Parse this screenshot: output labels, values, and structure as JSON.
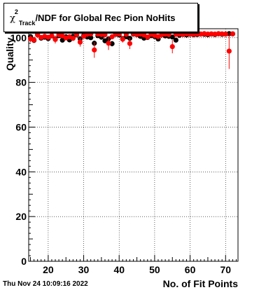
{
  "title": {
    "symbol": "χ",
    "superscript": "2",
    "subscript": "Track",
    "text": "/NDF for Global Rec Pion NoHits"
  },
  "timestamp": "Thu Nov 24 10:09:16 2022",
  "chart_data": {
    "type": "scatter",
    "title": "χ²_Track/NDF for Global Rec Pion NoHits",
    "xlabel": "No. of Fit Points",
    "ylabel": "Quality",
    "xlim": [
      14.5,
      73.5
    ],
    "ylim": [
      0,
      104
    ],
    "x_ticks": [
      20,
      30,
      40,
      50,
      60,
      70
    ],
    "y_ticks": [
      0,
      20,
      40,
      60,
      80,
      100
    ],
    "grid": true,
    "series": [
      {
        "color": "#000000",
        "points": [
          {
            "x": 15,
            "y": 100.5,
            "err": 0.8
          },
          {
            "x": 16,
            "y": 98.8,
            "err": 0.8
          },
          {
            "x": 17,
            "y": 101.5,
            "err": 0.8
          },
          {
            "x": 18,
            "y": 99.8,
            "err": 0.8
          },
          {
            "x": 19,
            "y": 100.2,
            "err": 0.8
          },
          {
            "x": 20,
            "y": 99.6,
            "err": 0.8
          },
          {
            "x": 21,
            "y": 100.8,
            "err": 0.8
          },
          {
            "x": 22,
            "y": 99.4,
            "err": 0.8
          },
          {
            "x": 23,
            "y": 100.9,
            "err": 0.8
          },
          {
            "x": 24,
            "y": 98.9,
            "err": 0.8
          },
          {
            "x": 25,
            "y": 100.4,
            "err": 0.8
          },
          {
            "x": 26,
            "y": 99.0,
            "err": 0.8
          },
          {
            "x": 27,
            "y": 100.6,
            "err": 0.8
          },
          {
            "x": 28,
            "y": 101.2,
            "err": 0.8
          },
          {
            "x": 29,
            "y": 99.5,
            "err": 0.8
          },
          {
            "x": 30,
            "y": 101.0,
            "err": 0.8
          },
          {
            "x": 31,
            "y": 100.3,
            "err": 0.8
          },
          {
            "x": 32,
            "y": 100.0,
            "err": 0.8
          },
          {
            "x": 33,
            "y": 97.5,
            "err": 1.2
          },
          {
            "x": 34,
            "y": 100.9,
            "err": 0.8
          },
          {
            "x": 35,
            "y": 100.2,
            "err": 0.8
          },
          {
            "x": 36,
            "y": 98.6,
            "err": 0.8
          },
          {
            "x": 37,
            "y": 99.5,
            "err": 0.8
          },
          {
            "x": 38,
            "y": 97.3,
            "err": 1.2
          },
          {
            "x": 39,
            "y": 101.5,
            "err": 0.8
          },
          {
            "x": 40,
            "y": 101.2,
            "err": 0.8
          },
          {
            "x": 41,
            "y": 99.6,
            "err": 0.8
          },
          {
            "x": 42,
            "y": 100.4,
            "err": 0.8
          },
          {
            "x": 43,
            "y": 99.7,
            "err": 0.8
          },
          {
            "x": 44,
            "y": 101.6,
            "err": 0.8
          },
          {
            "x": 45,
            "y": 101.3,
            "err": 0.8
          },
          {
            "x": 46,
            "y": 100.6,
            "err": 0.8
          },
          {
            "x": 47,
            "y": 99.8,
            "err": 0.8
          },
          {
            "x": 48,
            "y": 100.1,
            "err": 0.8
          },
          {
            "x": 49,
            "y": 100.9,
            "err": 0.8
          },
          {
            "x": 50,
            "y": 100.5,
            "err": 0.8
          },
          {
            "x": 51,
            "y": 99.4,
            "err": 0.8
          },
          {
            "x": 52,
            "y": 101.2,
            "err": 0.8
          },
          {
            "x": 53,
            "y": 100.8,
            "err": 0.8
          },
          {
            "x": 54,
            "y": 100.6,
            "err": 0.8
          },
          {
            "x": 55,
            "y": 100.3,
            "err": 0.8
          },
          {
            "x": 56,
            "y": 98.9,
            "err": 0.8
          },
          {
            "x": 57,
            "y": 101.1,
            "err": 0.8
          },
          {
            "x": 58,
            "y": 101.4,
            "err": 0.8
          },
          {
            "x": 59,
            "y": 101.2,
            "err": 0.8
          },
          {
            "x": 60,
            "y": 101.5,
            "err": 0.8
          },
          {
            "x": 61,
            "y": 101.3,
            "err": 0.8
          },
          {
            "x": 62,
            "y": 101.4,
            "err": 0.8
          },
          {
            "x": 63,
            "y": 101.6,
            "err": 0.8
          },
          {
            "x": 64,
            "y": 101.5,
            "err": 0.8
          },
          {
            "x": 65,
            "y": 101.3,
            "err": 0.8
          },
          {
            "x": 66,
            "y": 101.6,
            "err": 0.8
          },
          {
            "x": 67,
            "y": 101.4,
            "err": 0.8
          },
          {
            "x": 68,
            "y": 101.7,
            "err": 0.8
          },
          {
            "x": 69,
            "y": 101.5,
            "err": 0.8
          },
          {
            "x": 70,
            "y": 101.6,
            "err": 0.8
          },
          {
            "x": 71,
            "y": 101.8,
            "err": 0.8
          },
          {
            "x": 72,
            "y": 101.7,
            "err": 0.8
          }
        ]
      },
      {
        "color": "#ff0000",
        "points": [
          {
            "x": 15,
            "y": 99.5,
            "err": 1.5
          },
          {
            "x": 16,
            "y": 99.0,
            "err": 1.5
          },
          {
            "x": 17,
            "y": 101.2,
            "err": 1.2
          },
          {
            "x": 18,
            "y": 100.1,
            "err": 1.0
          },
          {
            "x": 19,
            "y": 100.6,
            "err": 1.0
          },
          {
            "x": 20,
            "y": 100.2,
            "err": 1.0
          },
          {
            "x": 21,
            "y": 100.9,
            "err": 1.0
          },
          {
            "x": 22,
            "y": 99.2,
            "err": 1.8
          },
          {
            "x": 23,
            "y": 101.3,
            "err": 1.0
          },
          {
            "x": 24,
            "y": 100.8,
            "err": 1.0
          },
          {
            "x": 25,
            "y": 99.9,
            "err": 1.0
          },
          {
            "x": 26,
            "y": 100.4,
            "err": 1.0
          },
          {
            "x": 27,
            "y": 99.7,
            "err": 1.0
          },
          {
            "x": 28,
            "y": 101.4,
            "err": 1.0
          },
          {
            "x": 29,
            "y": 98.0,
            "err": 2.0
          },
          {
            "x": 30,
            "y": 100.6,
            "err": 1.0
          },
          {
            "x": 31,
            "y": 101.5,
            "err": 1.0
          },
          {
            "x": 32,
            "y": 101.7,
            "err": 1.0
          },
          {
            "x": 33,
            "y": 94.5,
            "err": 3.5
          },
          {
            "x": 34,
            "y": 101.6,
            "err": 1.0
          },
          {
            "x": 35,
            "y": 101.4,
            "err": 1.0
          },
          {
            "x": 36,
            "y": 101.3,
            "err": 1.0
          },
          {
            "x": 37,
            "y": 97.5,
            "err": 3.0
          },
          {
            "x": 38,
            "y": 100.4,
            "err": 1.0
          },
          {
            "x": 39,
            "y": 101.7,
            "err": 1.0
          },
          {
            "x": 40,
            "y": 101.6,
            "err": 1.0
          },
          {
            "x": 41,
            "y": 99.3,
            "err": 1.5
          },
          {
            "x": 42,
            "y": 101.5,
            "err": 1.0
          },
          {
            "x": 43,
            "y": 97.4,
            "err": 2.5
          },
          {
            "x": 44,
            "y": 101.8,
            "err": 1.0
          },
          {
            "x": 45,
            "y": 101.4,
            "err": 1.0
          },
          {
            "x": 46,
            "y": 101.6,
            "err": 1.0
          },
          {
            "x": 47,
            "y": 101.2,
            "err": 1.0
          },
          {
            "x": 48,
            "y": 100.3,
            "err": 1.0
          },
          {
            "x": 49,
            "y": 101.5,
            "err": 1.0
          },
          {
            "x": 50,
            "y": 101.0,
            "err": 1.0
          },
          {
            "x": 51,
            "y": 100.5,
            "err": 1.0
          },
          {
            "x": 52,
            "y": 101.3,
            "err": 1.0
          },
          {
            "x": 53,
            "y": 101.6,
            "err": 1.0
          },
          {
            "x": 54,
            "y": 101.4,
            "err": 1.0
          },
          {
            "x": 55,
            "y": 96.0,
            "err": 3.0
          },
          {
            "x": 56,
            "y": 101.5,
            "err": 1.0
          },
          {
            "x": 57,
            "y": 101.6,
            "err": 1.0
          },
          {
            "x": 58,
            "y": 101.5,
            "err": 1.0
          },
          {
            "x": 59,
            "y": 101.7,
            "err": 1.0
          },
          {
            "x": 60,
            "y": 101.6,
            "err": 1.0
          },
          {
            "x": 61,
            "y": 101.5,
            "err": 1.0
          },
          {
            "x": 62,
            "y": 101.7,
            "err": 1.0
          },
          {
            "x": 63,
            "y": 101.6,
            "err": 1.0
          },
          {
            "x": 64,
            "y": 101.8,
            "err": 1.0
          },
          {
            "x": 65,
            "y": 101.6,
            "err": 1.0
          },
          {
            "x": 66,
            "y": 101.7,
            "err": 1.0
          },
          {
            "x": 67,
            "y": 101.6,
            "err": 1.0
          },
          {
            "x": 68,
            "y": 101.8,
            "err": 1.0
          },
          {
            "x": 69,
            "y": 101.7,
            "err": 1.0
          },
          {
            "x": 70,
            "y": 101.6,
            "err": 1.0
          },
          {
            "x": 71,
            "y": 94.0,
            "err": 8.0
          },
          {
            "x": 72,
            "y": 101.7,
            "err": 1.0
          }
        ]
      }
    ]
  }
}
